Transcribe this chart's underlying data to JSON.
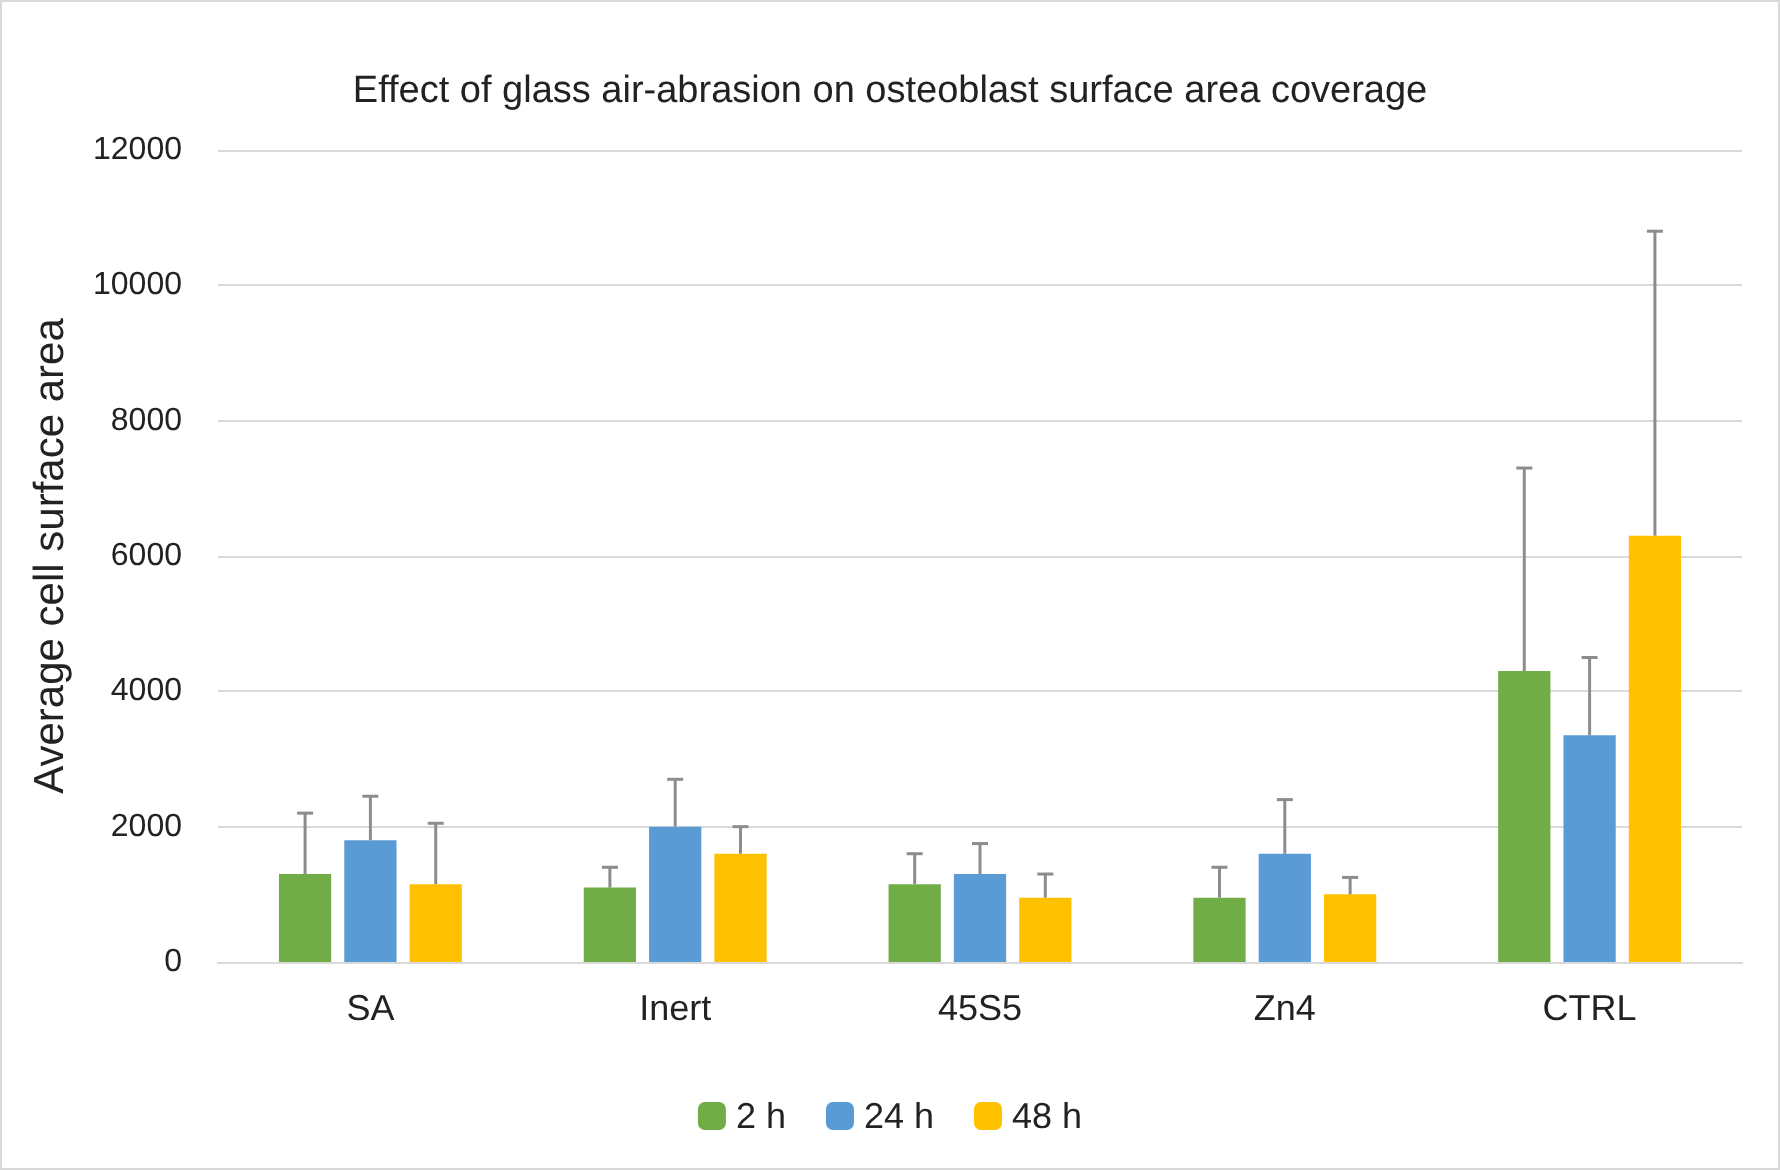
{
  "chart_data": {
    "type": "bar",
    "title": "Effect of glass air-abrasion on osteoblast surface area coverage",
    "ylabel": "Average cell surface area",
    "categories": [
      "SA",
      "Inert",
      "45S5",
      "Zn4",
      "CTRL"
    ],
    "series": [
      {
        "name": "2 h",
        "color": "#70ad47",
        "values": [
          1300,
          1100,
          1150,
          950,
          4300
        ],
        "errors": [
          [
            1300,
            2200
          ],
          [
            1100,
            1400
          ],
          [
            1150,
            1600
          ],
          [
            950,
            1400
          ],
          [
            4300,
            7300
          ]
        ]
      },
      {
        "name": "24 h",
        "color": "#5b9bd5",
        "values": [
          1800,
          2000,
          1300,
          1600,
          3350
        ],
        "errors": [
          [
            1800,
            2450
          ],
          [
            2000,
            2700
          ],
          [
            1300,
            1750
          ],
          [
            1600,
            2400
          ],
          [
            3350,
            4500
          ]
        ]
      },
      {
        "name": "48 h",
        "color": "#ffc000",
        "values": [
          1150,
          1600,
          950,
          1000,
          6300
        ],
        "errors": [
          [
            1150,
            2050
          ],
          [
            1600,
            2000
          ],
          [
            950,
            1300
          ],
          [
            1000,
            1250
          ],
          [
            6300,
            10800
          ]
        ]
      }
    ],
    "ylim": [
      0,
      12000
    ],
    "yticks": [
      0,
      2000,
      4000,
      6000,
      8000,
      10000,
      12000
    ],
    "grid": "y",
    "legend": "bottom"
  }
}
